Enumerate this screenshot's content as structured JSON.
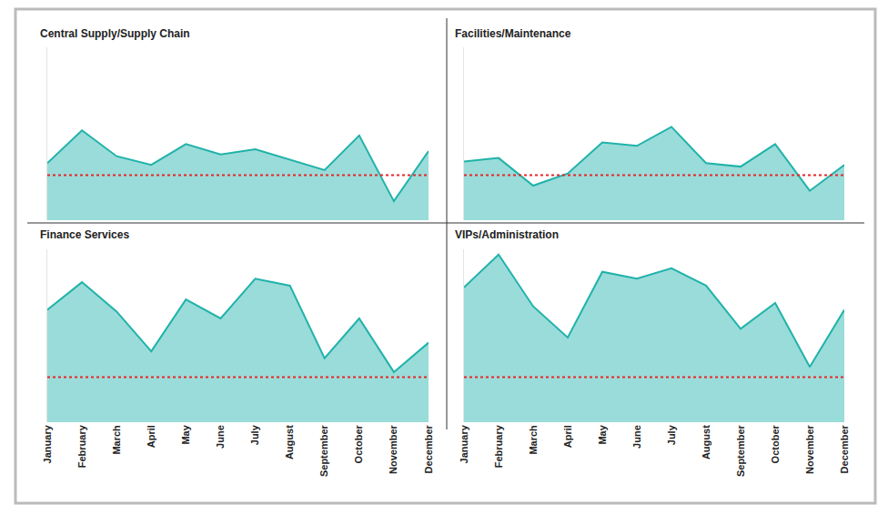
{
  "chart_data": [
    {
      "type": "area",
      "title": "Central Supply/Supply Chain",
      "categories": [
        "January",
        "February",
        "March",
        "April",
        "May",
        "June",
        "July",
        "August",
        "September",
        "October",
        "November",
        "December"
      ],
      "series": [
        {
          "type": "area",
          "color": "#20b2aa",
          "values": [
            33,
            52,
            37,
            32,
            44,
            38,
            41,
            35,
            29,
            49,
            11,
            40
          ]
        },
        {
          "type": "line",
          "line_style": "dotted",
          "color": "#e8262a",
          "values": [
            26,
            26,
            26,
            26,
            26,
            26,
            26,
            26,
            26,
            26,
            26,
            26
          ]
        }
      ],
      "ylim": [
        0,
        100
      ],
      "grid": false,
      "tick_labels": false
    },
    {
      "type": "area",
      "title": "Facilities/Maintenance",
      "categories": [
        "January",
        "February",
        "March",
        "April",
        "May",
        "June",
        "July",
        "August",
        "September",
        "October",
        "November",
        "December"
      ],
      "series": [
        {
          "type": "area",
          "color": "#20b2aa",
          "values": [
            34,
            36,
            20,
            27,
            45,
            43,
            54,
            33,
            31,
            44,
            17,
            32
          ]
        },
        {
          "type": "line",
          "line_style": "dotted",
          "color": "#e8262a",
          "values": [
            26,
            26,
            26,
            26,
            26,
            26,
            26,
            26,
            26,
            26,
            26,
            26
          ]
        }
      ],
      "ylim": [
        0,
        100
      ],
      "grid": false,
      "tick_labels": false
    },
    {
      "type": "area",
      "title": "Finance Services",
      "categories": [
        "January",
        "February",
        "March",
        "April",
        "May",
        "June",
        "July",
        "August",
        "September",
        "October",
        "November",
        "December"
      ],
      "series": [
        {
          "type": "area",
          "color": "#20b2aa",
          "values": [
            65,
            81,
            64,
            41,
            71,
            60,
            83,
            79,
            37,
            60,
            29,
            46
          ]
        },
        {
          "type": "line",
          "line_style": "dotted",
          "color": "#e8262a",
          "values": [
            26,
            26,
            26,
            26,
            26,
            26,
            26,
            26,
            26,
            26,
            26,
            26
          ]
        }
      ],
      "ylim": [
        0,
        100
      ],
      "grid": false,
      "tick_labels": "x"
    },
    {
      "type": "area",
      "title": "VIPs/Administration",
      "categories": [
        "January",
        "February",
        "March",
        "April",
        "May",
        "June",
        "July",
        "August",
        "September",
        "October",
        "November",
        "December"
      ],
      "series": [
        {
          "type": "area",
          "color": "#20b2aa",
          "values": [
            78,
            97,
            67,
            49,
            87,
            83,
            89,
            79,
            54,
            69,
            32,
            65
          ]
        },
        {
          "type": "line",
          "line_style": "dotted",
          "color": "#e8262a",
          "values": [
            26,
            26,
            26,
            26,
            26,
            26,
            26,
            26,
            26,
            26,
            26,
            26
          ]
        }
      ],
      "ylim": [
        0,
        100
      ],
      "grid": false,
      "tick_labels": "x"
    }
  ]
}
